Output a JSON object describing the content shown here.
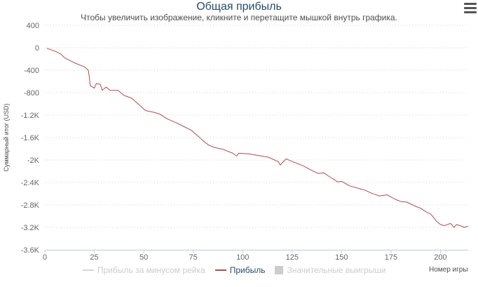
{
  "title": "Общая прибыль",
  "subtitle": "Чтобы увеличить изображение, кликните и перетащите мышкой внутрь графика.",
  "menu_icon": "hamburger-menu-icon",
  "colors": {
    "profit": "#b54a4a",
    "no_rake": "#d6d6d6",
    "big_wins": "#cccccc",
    "legend_hidden_text": "#cccccc",
    "legend_text": "#274b6d",
    "grid": "#d0d0d0",
    "axis_text": "#666666"
  },
  "legend": [
    {
      "label": "Прибыль за минусом рейка",
      "kind": "line",
      "hidden": true
    },
    {
      "label": "Прибыль",
      "kind": "line",
      "hidden": false
    },
    {
      "label": "Значительные выигрыши",
      "kind": "box",
      "hidden": true
    }
  ],
  "chart_data": {
    "type": "line",
    "title": "Общая прибыль",
    "xlabel": "Номер игры",
    "ylabel": "Суммарный итог (USD)",
    "xlim": [
      0,
      214
    ],
    "ylim": [
      -3600,
      400
    ],
    "x_ticks": [
      0,
      25,
      50,
      75,
      100,
      125,
      150,
      175,
      200
    ],
    "y_ticks": [
      400,
      0,
      -400,
      -800,
      -1200,
      -1600,
      -2000,
      -2400,
      -2800,
      -3200,
      -3600
    ],
    "y_tick_labels": [
      "400",
      "0",
      "-400",
      "-800",
      "-1.2K",
      "-1.6K",
      "-2K",
      "-2.4K",
      "-2.8K",
      "-3.2K",
      "-3.6K"
    ],
    "grid": true,
    "legend_position": "bottom",
    "series": [
      {
        "name": "Прибыль",
        "points": [
          [
            1,
            -10
          ],
          [
            5,
            -60
          ],
          [
            8,
            -110
          ],
          [
            10,
            -180
          ],
          [
            15,
            -270
          ],
          [
            20,
            -340
          ],
          [
            22,
            -400
          ],
          [
            23,
            -680
          ],
          [
            25,
            -720
          ],
          [
            26,
            -640
          ],
          [
            28,
            -650
          ],
          [
            29,
            -760
          ],
          [
            31,
            -700
          ],
          [
            33,
            -760
          ],
          [
            37,
            -760
          ],
          [
            40,
            -850
          ],
          [
            44,
            -900
          ],
          [
            48,
            -1030
          ],
          [
            51,
            -1120
          ],
          [
            55,
            -1150
          ],
          [
            58,
            -1180
          ],
          [
            62,
            -1270
          ],
          [
            66,
            -1330
          ],
          [
            70,
            -1400
          ],
          [
            74,
            -1470
          ],
          [
            78,
            -1590
          ],
          [
            80,
            -1660
          ],
          [
            83,
            -1740
          ],
          [
            86,
            -1780
          ],
          [
            90,
            -1810
          ],
          [
            95,
            -1880
          ],
          [
            97,
            -1930
          ],
          [
            98,
            -1880
          ],
          [
            103,
            -1890
          ],
          [
            108,
            -1920
          ],
          [
            113,
            -1950
          ],
          [
            118,
            -2030
          ],
          [
            119,
            -2090
          ],
          [
            120,
            -2050
          ],
          [
            122,
            -1980
          ],
          [
            126,
            -2040
          ],
          [
            131,
            -2110
          ],
          [
            134,
            -2170
          ],
          [
            138,
            -2240
          ],
          [
            141,
            -2230
          ],
          [
            144,
            -2300
          ],
          [
            148,
            -2390
          ],
          [
            150,
            -2380
          ],
          [
            154,
            -2460
          ],
          [
            158,
            -2500
          ],
          [
            162,
            -2540
          ],
          [
            165,
            -2590
          ],
          [
            169,
            -2640
          ],
          [
            173,
            -2620
          ],
          [
            177,
            -2700
          ],
          [
            180,
            -2740
          ],
          [
            183,
            -2750
          ],
          [
            187,
            -2820
          ],
          [
            190,
            -2860
          ],
          [
            193,
            -2930
          ],
          [
            195,
            -2960
          ],
          [
            198,
            -3090
          ],
          [
            200,
            -3150
          ],
          [
            202,
            -3170
          ],
          [
            205,
            -3130
          ],
          [
            207,
            -3200
          ],
          [
            208,
            -3150
          ],
          [
            210,
            -3170
          ],
          [
            212,
            -3200
          ],
          [
            214,
            -3180
          ]
        ]
      }
    ]
  }
}
